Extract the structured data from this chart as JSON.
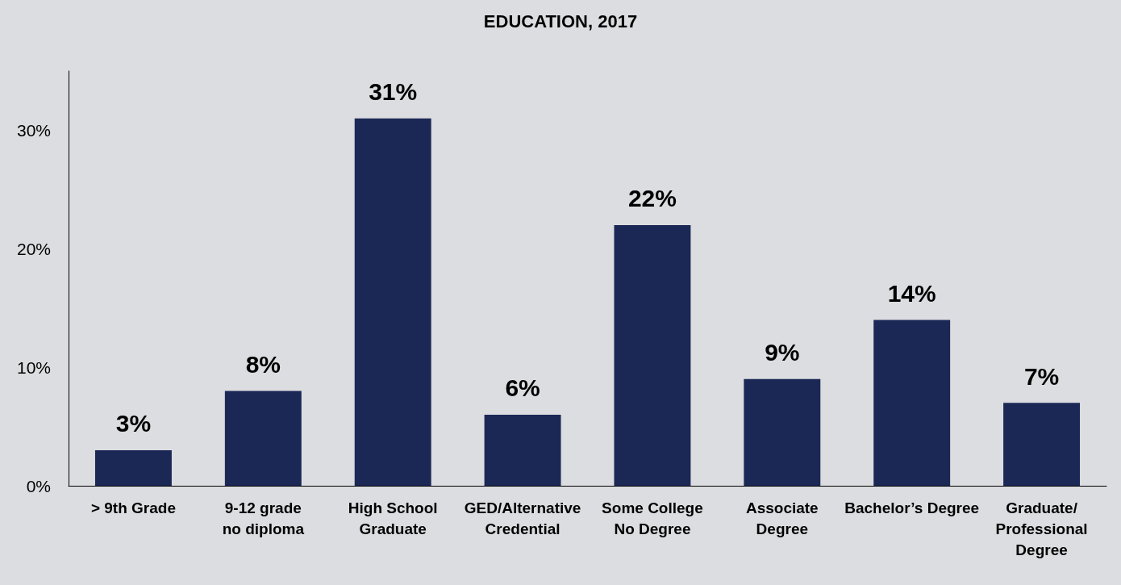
{
  "chart_data": {
    "type": "bar",
    "title": "EDUCATION, 2017",
    "categories": [
      "> 9th Grade",
      "9-12 grade\nno diploma",
      "High School\nGraduate",
      "GED/Alternative\nCredential",
      "Some College\nNo Degree",
      "Associate\nDegree",
      "Bachelor’s Degree",
      "Graduate/\nProfessional\nDegree"
    ],
    "values": [
      3,
      8,
      31,
      6,
      22,
      9,
      14,
      7
    ],
    "color": "#1b2856",
    "ylim": [
      0,
      35
    ],
    "yticks": [
      {
        "value": 0,
        "label": "0%"
      },
      {
        "value": 10,
        "label": "10%"
      },
      {
        "value": 20,
        "label": "20%"
      },
      {
        "value": 30,
        "label": "30%"
      }
    ],
    "value_labels": [
      "3%",
      "8%",
      "31%",
      "6%",
      "22%",
      "9%",
      "14%",
      "7%"
    ]
  }
}
